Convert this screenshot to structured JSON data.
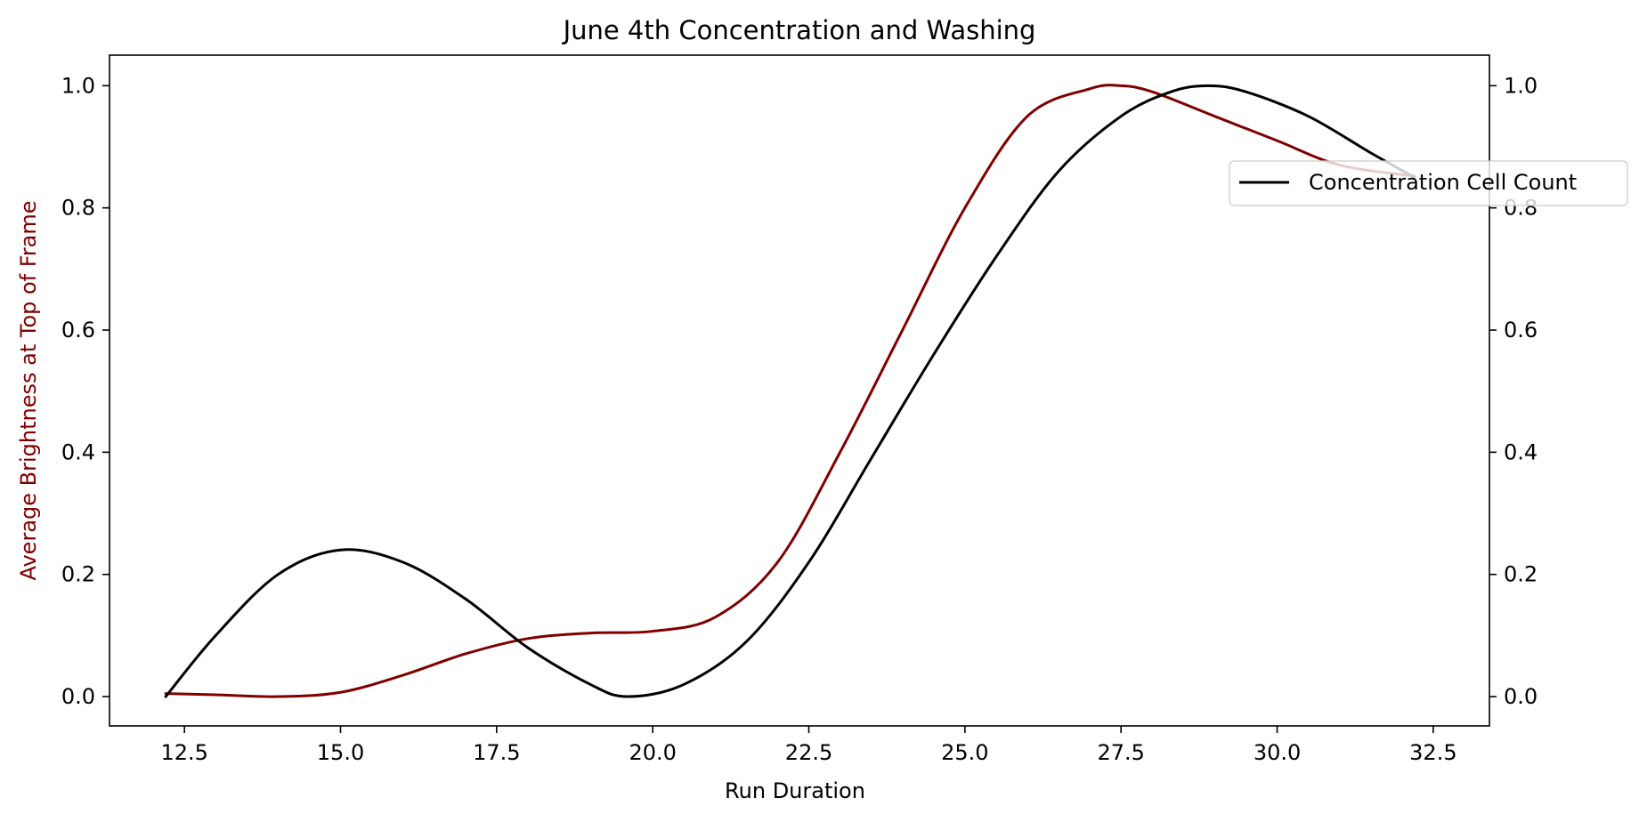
{
  "chart_data": {
    "type": "line",
    "title": "June 4th Concentration and Washing",
    "xlabel": "Run Duration",
    "ylabel_left": "Average Brightness at Top of Frame",
    "xlim": [
      11.3,
      33.4
    ],
    "ylim_left": [
      -0.048,
      1.05
    ],
    "ylim_right": [
      -0.048,
      1.05
    ],
    "x_ticks": [
      "12.5",
      "15.0",
      "17.5",
      "20.0",
      "22.5",
      "25.0",
      "27.5",
      "30.0",
      "32.5"
    ],
    "y_ticks_left": [
      "0.0",
      "0.2",
      "0.4",
      "0.6",
      "0.8",
      "1.0"
    ],
    "y_ticks_right": [
      "0.0",
      "0.2",
      "0.4",
      "0.6",
      "0.8",
      "1.0"
    ],
    "grid": false,
    "legend_position": "right",
    "series": [
      {
        "axis": "left",
        "color": "#800000",
        "x": [
          12.2,
          13.0,
          14.0,
          15.0,
          16.0,
          17.0,
          18.0,
          19.0,
          20.0,
          21.0,
          22.0,
          23.0,
          24.0,
          25.0,
          26.0,
          27.0,
          27.5,
          28.0,
          29.0,
          30.0,
          31.0,
          32.2
        ],
        "values": [
          0.005,
          0.003,
          0.0,
          0.007,
          0.035,
          0.07,
          0.095,
          0.104,
          0.107,
          0.13,
          0.22,
          0.4,
          0.6,
          0.8,
          0.95,
          0.995,
          1.0,
          0.99,
          0.95,
          0.91,
          0.87,
          0.852
        ]
      },
      {
        "axis": "right",
        "name": "Concentration Cell Count",
        "color": "#000000",
        "x": [
          12.2,
          13.0,
          14.0,
          15.0,
          16.0,
          17.0,
          18.0,
          19.0,
          19.6,
          20.5,
          21.5,
          22.5,
          23.5,
          24.5,
          25.5,
          26.5,
          27.5,
          28.3,
          28.9,
          29.5,
          30.5,
          31.5,
          32.2
        ],
        "values": [
          0.0,
          0.1,
          0.2,
          0.24,
          0.22,
          0.16,
          0.08,
          0.02,
          0.0,
          0.02,
          0.09,
          0.22,
          0.39,
          0.56,
          0.72,
          0.86,
          0.95,
          0.99,
          1.0,
          0.99,
          0.95,
          0.89,
          0.85
        ]
      }
    ]
  }
}
